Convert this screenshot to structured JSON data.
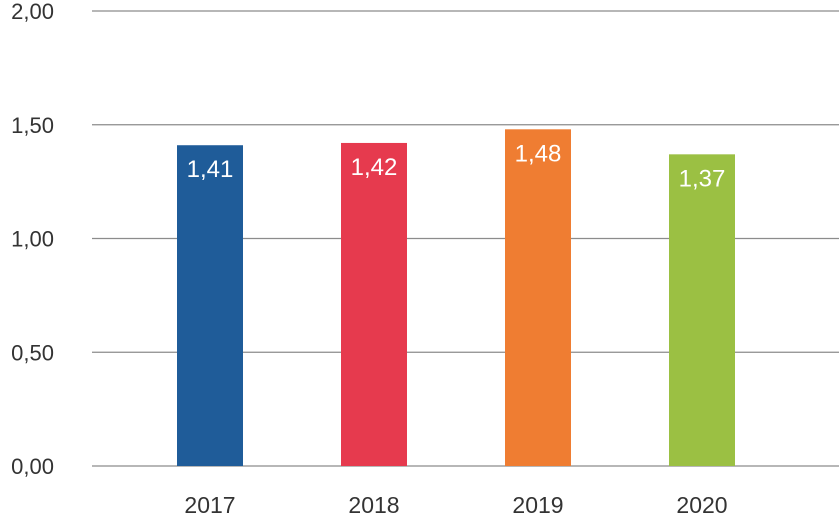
{
  "chart_data": {
    "type": "bar",
    "title": "",
    "xlabel": "",
    "ylabel": "",
    "ylim": [
      0,
      2
    ],
    "yticks": [
      {
        "value": 0,
        "label": "0,00"
      },
      {
        "value": 0.5,
        "label": "0,50"
      },
      {
        "value": 1,
        "label": "1,00"
      },
      {
        "value": 1.5,
        "label": "1,50"
      },
      {
        "value": 2,
        "label": "2,00"
      }
    ],
    "grid": true,
    "legend": "none",
    "categories": [
      "2017",
      "2018",
      "2019",
      "2020"
    ],
    "values": [
      1.41,
      1.42,
      1.48,
      1.37
    ],
    "data_labels": [
      "1,41",
      "1,42",
      "1,48",
      "1,37"
    ],
    "colors": [
      "#1f5c99",
      "#e63a4e",
      "#ef7d32",
      "#9bc043"
    ]
  }
}
